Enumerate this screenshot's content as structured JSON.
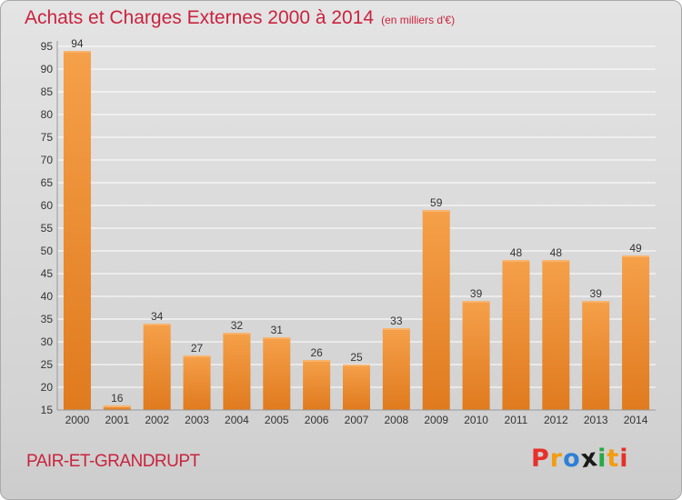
{
  "header": {
    "title": "Achats et Charges Externes 2000 à 2014",
    "unit": "(en milliers d'€)"
  },
  "footer": {
    "commune": "PAIR-ET-GRANDRUPT",
    "brand": "Proxiti",
    "brand_colors": [
      "#e8302a",
      "#f39c12",
      "#2e7fd6",
      "#1a1a1a",
      "#27a844",
      "#f39c12",
      "#e8302a"
    ]
  },
  "colors": {
    "bar": "#f5a04a",
    "bar_dark": "#e07a1e",
    "grid": "#ffffff",
    "axis_text": "#333333"
  },
  "chart_data": {
    "type": "bar",
    "title": "Achats et Charges Externes 2000 à 2014",
    "subtitle": "(en milliers d'€)",
    "categories": [
      "2000",
      "2001",
      "2002",
      "2003",
      "2004",
      "2005",
      "2006",
      "2007",
      "2008",
      "2009",
      "2010",
      "2011",
      "2012",
      "2013",
      "2014"
    ],
    "values": [
      94,
      16,
      34,
      27,
      32,
      31,
      26,
      25,
      33,
      59,
      39,
      48,
      48,
      39,
      49
    ],
    "data_labels": [
      "94",
      "16",
      "34",
      "27",
      "32",
      "31",
      "26",
      "25",
      "33",
      "59",
      "39",
      "48",
      "48",
      "39",
      "49"
    ],
    "y_ticks": [
      "15",
      "20",
      "25",
      "30",
      "35",
      "40",
      "45",
      "50",
      "55",
      "60",
      "65",
      "70",
      "75",
      "80",
      "85",
      "90",
      "95"
    ],
    "ylim": [
      15,
      95
    ],
    "grid": true,
    "legend": "none"
  }
}
